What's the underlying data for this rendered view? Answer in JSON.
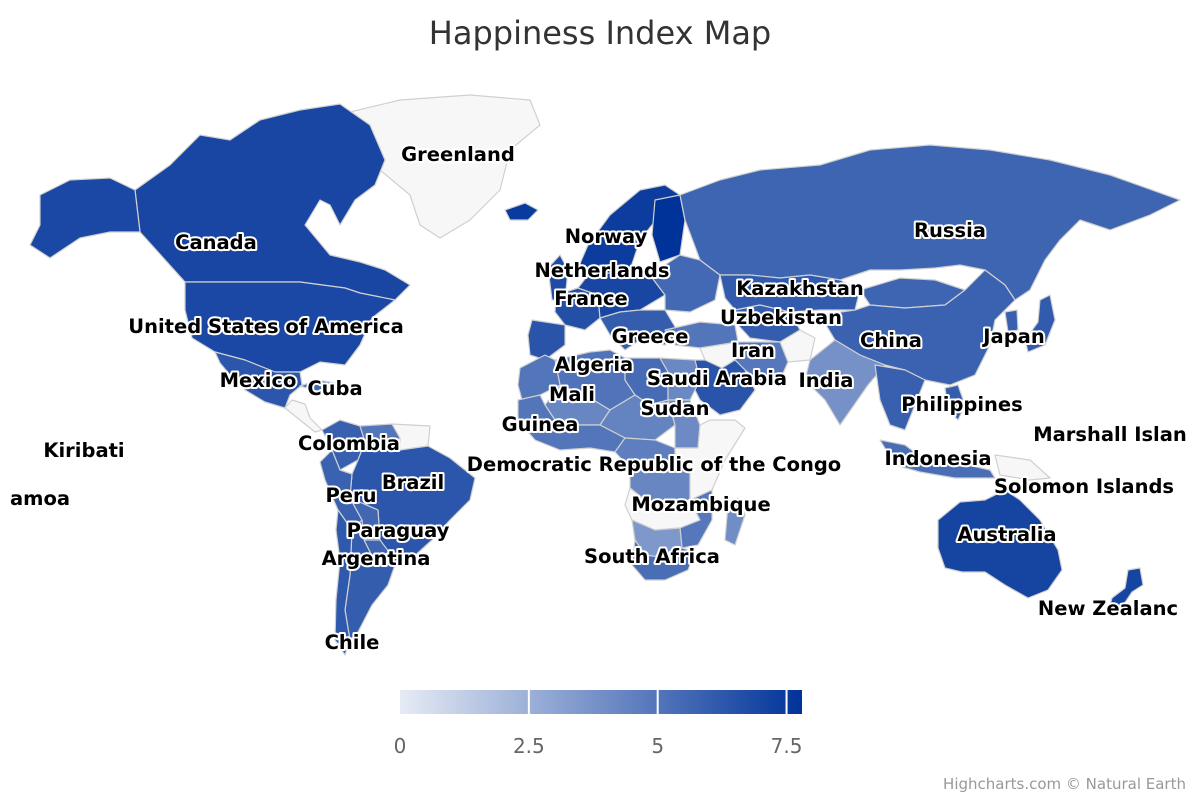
{
  "title": "Happiness Index Map",
  "credits": "Highcharts.com © Natural Earth",
  "colors": {
    "min": "#e6ebf5",
    "max": "#003399",
    "null": "#f7f7f7",
    "border": "#d0d0d0"
  },
  "legend": {
    "ticks": [
      "0",
      "2.5",
      "5",
      "7.5"
    ]
  },
  "chart_data": {
    "type": "choropleth",
    "title": "Happiness Index Map",
    "color_axis": {
      "min": 0,
      "max": 7.8,
      "tick_interval": 2.5
    },
    "labels": [
      {
        "name": "Greenland",
        "value": null
      },
      {
        "name": "Canada",
        "value": 7.0
      },
      {
        "name": "United States of America",
        "value": 6.9
      },
      {
        "name": "Mexico",
        "value": 6.3
      },
      {
        "name": "Cuba",
        "value": null
      },
      {
        "name": "Kiribati",
        "value": null
      },
      {
        "name": "amoa",
        "value": null
      },
      {
        "name": "Colombia",
        "value": 5.9
      },
      {
        "name": "Brazil",
        "value": 6.3
      },
      {
        "name": "Peru",
        "value": 5.8
      },
      {
        "name": "Paraguay",
        "value": 5.7
      },
      {
        "name": "Argentina",
        "value": 6.0
      },
      {
        "name": "Chile",
        "value": 6.2
      },
      {
        "name": "Norway",
        "value": 7.4
      },
      {
        "name": "Netherlands",
        "value": 7.4
      },
      {
        "name": "France",
        "value": 6.6
      },
      {
        "name": "Greece",
        "value": 5.9
      },
      {
        "name": "Algeria",
        "value": 5.1
      },
      {
        "name": "Mali",
        "value": 4.3
      },
      {
        "name": "Guinea",
        "value": 5.0
      },
      {
        "name": "Saudi Arabia",
        "value": 6.4
      },
      {
        "name": "Sudan",
        "value": 4.1
      },
      {
        "name": "Democratic Republic of the Congo",
        "value": 4.3
      },
      {
        "name": "Mozambique",
        "value": 4.9
      },
      {
        "name": "South Africa",
        "value": 5.3
      },
      {
        "name": "Kazakhstan",
        "value": 6.1
      },
      {
        "name": "Uzbekistan",
        "value": 6.0
      },
      {
        "name": "Iran",
        "value": 4.9
      },
      {
        "name": "India",
        "value": 3.8
      },
      {
        "name": "Russia",
        "value": 5.7
      },
      {
        "name": "China",
        "value": 5.8
      },
      {
        "name": "Japan",
        "value": 6.1
      },
      {
        "name": "Philippines",
        "value": 6.0
      },
      {
        "name": "Indonesia",
        "value": 5.3
      },
      {
        "name": "Marshall Islan",
        "value": null
      },
      {
        "name": "Solomon Islands",
        "value": null
      },
      {
        "name": "Australia",
        "value": 7.1
      },
      {
        "name": "New Zealanc",
        "value": 7.1
      }
    ],
    "countries": [
      {
        "id": "greenland",
        "value": null
      },
      {
        "id": "canada",
        "value": 7.0
      },
      {
        "id": "alaska",
        "value": 6.9
      },
      {
        "id": "usa",
        "value": 6.9
      },
      {
        "id": "mexico",
        "value": 6.3
      },
      {
        "id": "cuba",
        "value": 5.5
      },
      {
        "id": "central-america",
        "value": null
      },
      {
        "id": "colombia",
        "value": 5.9
      },
      {
        "id": "venezuela",
        "value": 5.0
      },
      {
        "id": "guianas",
        "value": null
      },
      {
        "id": "brazil",
        "value": 6.3
      },
      {
        "id": "peru",
        "value": 5.8
      },
      {
        "id": "bolivia",
        "value": 5.6
      },
      {
        "id": "paraguay",
        "value": 5.7
      },
      {
        "id": "argentina",
        "value": 6.0
      },
      {
        "id": "chile",
        "value": 6.2
      },
      {
        "id": "iceland",
        "value": 7.5
      },
      {
        "id": "uk",
        "value": 6.8
      },
      {
        "id": "scandinavia",
        "value": 7.4
      },
      {
        "id": "finland",
        "value": 7.8
      },
      {
        "id": "france",
        "value": 6.6
      },
      {
        "id": "iberia",
        "value": 6.4
      },
      {
        "id": "central-europe",
        "value": 7.0
      },
      {
        "id": "italy-balkans",
        "value": 6.0
      },
      {
        "id": "east-europe",
        "value": 5.5
      },
      {
        "id": "turkey",
        "value": 5.0
      },
      {
        "id": "russia",
        "value": 5.7
      },
      {
        "id": "kazakhstan",
        "value": 6.1
      },
      {
        "id": "uzbek-turkmen",
        "value": 6.0
      },
      {
        "id": "afghanistan",
        "value": null
      },
      {
        "id": "mongolia",
        "value": 5.7
      },
      {
        "id": "china",
        "value": 5.8
      },
      {
        "id": "india",
        "value": 3.8
      },
      {
        "id": "iran",
        "value": 4.9
      },
      {
        "id": "iraq",
        "value": null
      },
      {
        "id": "saudi-arabia",
        "value": 6.4
      },
      {
        "id": "algeria",
        "value": 5.1
      },
      {
        "id": "morocco",
        "value": 5.0
      },
      {
        "id": "libya",
        "value": 5.4
      },
      {
        "id": "egypt",
        "value": 4.2
      },
      {
        "id": "mali",
        "value": 4.3
      },
      {
        "id": "niger-chad",
        "value": 4.4
      },
      {
        "id": "sudan",
        "value": 4.1
      },
      {
        "id": "west-africa",
        "value": 5.0
      },
      {
        "id": "central-africa",
        "value": 4.6
      },
      {
        "id": "drc",
        "value": 4.3
      },
      {
        "id": "east-africa",
        "value": null
      },
      {
        "id": "angola-zambia",
        "value": null
      },
      {
        "id": "mozambique",
        "value": 4.9
      },
      {
        "id": "namibia-botswana",
        "value": 3.5
      },
      {
        "id": "south-africa",
        "value": 5.3
      },
      {
        "id": "madagascar",
        "value": 4.0
      },
      {
        "id": "southeast-asia",
        "value": 5.9
      },
      {
        "id": "japan",
        "value": 6.1
      },
      {
        "id": "korea",
        "value": 5.9
      },
      {
        "id": "philippines",
        "value": 6.0
      },
      {
        "id": "indonesia",
        "value": 5.3
      },
      {
        "id": "new-guinea",
        "value": null
      },
      {
        "id": "australia",
        "value": 7.1
      },
      {
        "id": "new-zealand",
        "value": 7.1
      }
    ]
  }
}
